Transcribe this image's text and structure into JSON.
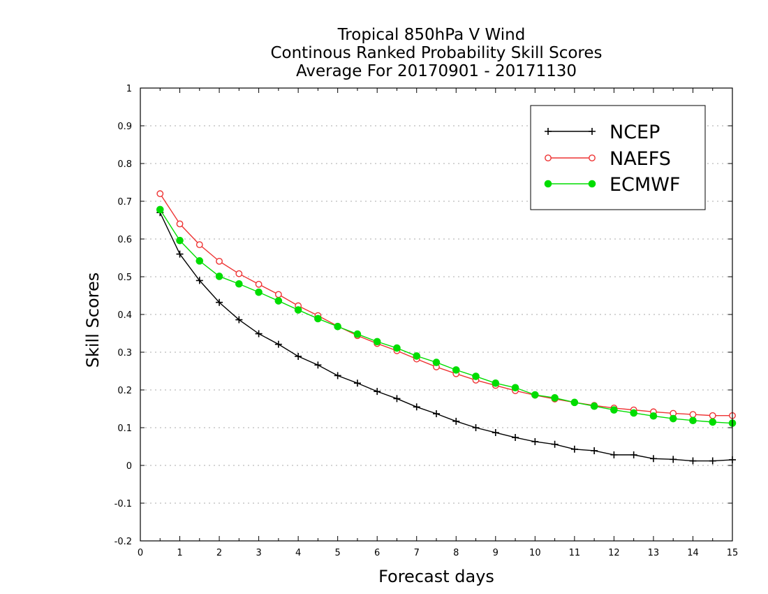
{
  "chart_data": {
    "type": "line",
    "title_lines": [
      "Tropical 850hPa V Wind",
      "Continous Ranked Probability Skill Scores",
      "Average For 20170901 - 20171130"
    ],
    "xlabel": "Forecast days",
    "ylabel": "Skill Scores",
    "xlim": [
      0,
      15
    ],
    "ylim": [
      -0.2,
      1
    ],
    "x_ticks": [
      0,
      1,
      2,
      3,
      4,
      5,
      6,
      7,
      8,
      9,
      10,
      11,
      12,
      13,
      14,
      15
    ],
    "y_ticks": [
      -0.2,
      -0.1,
      0,
      0.1,
      0.2,
      0.3,
      0.4,
      0.5,
      0.6,
      0.7,
      0.8,
      0.9,
      1
    ],
    "y_tick_labels": [
      "-0.2",
      "-0.1",
      "0",
      "0.1",
      "0.2",
      "0.3",
      "0.4",
      "0.5",
      "0.6",
      "0.7",
      "0.8",
      "0.9",
      "1"
    ],
    "grid": "horizontal dotted",
    "legend_position": "top-right",
    "x": [
      0.5,
      1,
      1.5,
      2,
      2.5,
      3,
      3.5,
      4,
      4.5,
      5,
      5.5,
      6,
      6.5,
      7,
      7.5,
      8,
      8.5,
      9,
      9.5,
      10,
      10.5,
      11,
      11.5,
      12,
      12.5,
      13,
      13.5,
      14,
      14.5,
      15
    ],
    "series": [
      {
        "name": "NCEP",
        "color": "#000000",
        "marker": "plus",
        "values": [
          0.67,
          0.56,
          0.49,
          0.432,
          0.386,
          0.349,
          0.321,
          0.289,
          0.266,
          0.238,
          0.218,
          0.196,
          0.177,
          0.155,
          0.137,
          0.117,
          0.1,
          0.087,
          0.074,
          0.063,
          0.056,
          0.043,
          0.039,
          0.028,
          0.028,
          0.018,
          0.016,
          0.012,
          0.012,
          0.015
        ]
      },
      {
        "name": "NAEFS",
        "color": "#ee3333",
        "marker": "open-circle",
        "values": [
          0.72,
          0.64,
          0.585,
          0.541,
          0.508,
          0.48,
          0.453,
          0.423,
          0.397,
          0.369,
          0.344,
          0.323,
          0.304,
          0.282,
          0.261,
          0.243,
          0.226,
          0.212,
          0.198,
          0.186,
          0.176,
          0.167,
          0.159,
          0.152,
          0.147,
          0.142,
          0.138,
          0.135,
          0.132,
          0.132
        ]
      },
      {
        "name": "ECMWF",
        "color": "#00dd00",
        "marker": "filled-circle",
        "values": [
          0.678,
          0.596,
          0.542,
          0.501,
          0.481,
          0.459,
          0.436,
          0.412,
          0.389,
          0.368,
          0.348,
          0.328,
          0.311,
          0.29,
          0.273,
          0.253,
          0.236,
          0.218,
          0.206,
          0.187,
          0.179,
          0.167,
          0.157,
          0.147,
          0.139,
          0.131,
          0.124,
          0.119,
          0.115,
          0.112
        ]
      }
    ]
  }
}
